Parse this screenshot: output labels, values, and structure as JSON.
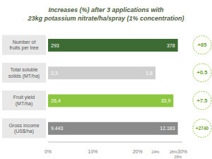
{
  "chart_data": {
    "type": "bar",
    "orientation": "horizontal",
    "title": "Increases (%) after 3 applications with\n23kg potassium nitrate/ha/spray (1% concentration)",
    "categories": [
      "Number of fruits per tree",
      "Total soluble solids (MT/ha)",
      "Fruit yield (MT/ha)",
      "Gross income (US$/ha)"
    ],
    "values": [
      29,
      24,
      28,
      29
    ],
    "colors": [
      "#3d6b34",
      "#cfcfcf",
      "#8dc63f",
      "#8a8a8a"
    ],
    "xlim": [
      0,
      30
    ],
    "xticks": [
      {
        "value": 0,
        "label": "0%"
      },
      {
        "value": 10,
        "label": "10%"
      },
      {
        "value": 20,
        "label": "20%"
      },
      {
        "value": 24,
        "label": "24%"
      },
      {
        "value": 28,
        "label": "28%"
      },
      {
        "value": 29,
        "label": "29%"
      },
      {
        "value": 30,
        "label": "30%"
      }
    ],
    "grid": false,
    "before": {
      "values": [
        293,
        2.3,
        26.4,
        9443
      ],
      "value_labels": [
        "293",
        "2,3",
        "26,4",
        "9.443"
      ]
    },
    "after": {
      "values": [
        378,
        2.8,
        33.9,
        12183
      ],
      "value_labels": [
        "378",
        "2,8",
        "33,9",
        "12.183"
      ]
    },
    "increase": {
      "values": [
        85,
        0.5,
        7.5,
        2740
      ],
      "value_labels": [
        "+85",
        "+0.5",
        "+7.5",
        "+2740"
      ]
    }
  }
}
